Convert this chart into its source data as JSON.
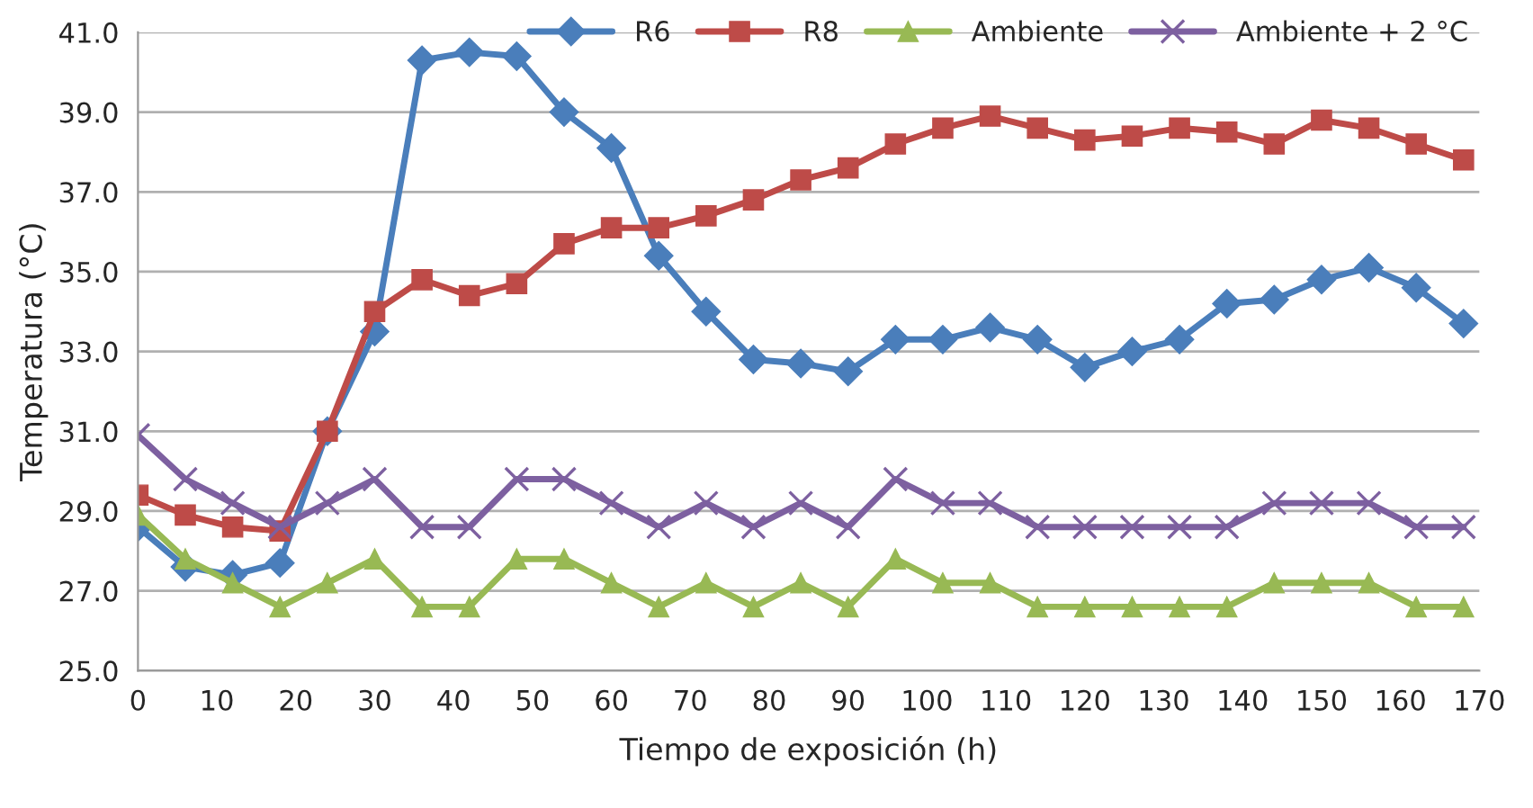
{
  "chart_data": {
    "type": "line",
    "xlabel": "Tiempo de exposición (h)",
    "ylabel": "Temperatura (°C)",
    "x": [
      0,
      6,
      12,
      18,
      24,
      30,
      36,
      42,
      48,
      54,
      60,
      66,
      72,
      78,
      84,
      90,
      96,
      102,
      108,
      114,
      120,
      126,
      132,
      138,
      144,
      150,
      156,
      162,
      168
    ],
    "series": [
      {
        "name": "R6",
        "color": "#4a7ebb",
        "marker": "diamond",
        "values": [
          28.6,
          27.6,
          27.4,
          27.7,
          31.0,
          33.5,
          40.3,
          40.5,
          40.4,
          39.0,
          38.1,
          35.4,
          34.0,
          32.8,
          32.7,
          32.5,
          33.3,
          33.3,
          33.6,
          33.3,
          32.6,
          33.0,
          33.3,
          34.2,
          34.3,
          34.8,
          35.1,
          34.6,
          33.7
        ]
      },
      {
        "name": "R8",
        "color": "#be4b48",
        "marker": "square",
        "values": [
          29.4,
          28.9,
          28.6,
          28.5,
          31.0,
          34.0,
          34.8,
          34.4,
          34.7,
          35.7,
          36.1,
          36.1,
          36.4,
          36.8,
          37.3,
          37.6,
          38.2,
          38.6,
          38.9,
          38.6,
          38.3,
          38.4,
          38.6,
          38.5,
          38.2,
          38.8,
          38.6,
          38.2,
          37.8
        ]
      },
      {
        "name": "Ambiente",
        "color": "#98b954",
        "marker": "triangle",
        "values": [
          28.9,
          27.8,
          27.2,
          26.6,
          27.2,
          27.8,
          26.6,
          26.6,
          27.8,
          27.8,
          27.2,
          26.6,
          27.2,
          26.6,
          27.2,
          26.6,
          27.8,
          27.2,
          27.2,
          26.6,
          26.6,
          26.6,
          26.6,
          26.6,
          27.2,
          27.2,
          27.2,
          26.6,
          26.6
        ]
      },
      {
        "name": "Ambiente + 2 °C",
        "color": "#7d60a0",
        "marker": "cross",
        "values": [
          30.9,
          29.8,
          29.2,
          28.6,
          29.2,
          29.8,
          28.6,
          28.6,
          29.8,
          29.8,
          29.2,
          28.6,
          29.2,
          28.6,
          29.2,
          28.6,
          29.8,
          29.2,
          29.2,
          28.6,
          28.6,
          28.6,
          28.6,
          28.6,
          29.2,
          29.2,
          29.2,
          28.6,
          28.6
        ]
      }
    ],
    "xlim": [
      0,
      170
    ],
    "xticks": [
      0,
      10,
      20,
      30,
      40,
      50,
      60,
      70,
      80,
      90,
      100,
      110,
      120,
      130,
      140,
      150,
      160,
      170
    ],
    "ylim": [
      25,
      41
    ],
    "yticks": [
      {
        "value": 25,
        "label": "25.0"
      },
      {
        "value": 27,
        "label": "27.0"
      },
      {
        "value": 29,
        "label": "29.0"
      },
      {
        "value": 31,
        "label": "31.0"
      },
      {
        "value": 33,
        "label": "33.0"
      },
      {
        "value": 35,
        "label": "35.0"
      },
      {
        "value": 37,
        "label": "37.0"
      },
      {
        "value": 39,
        "label": "39.0"
      },
      {
        "value": 41,
        "label": "41.0"
      }
    ],
    "grid": "y",
    "legend": "top right",
    "line_style": "solid"
  }
}
